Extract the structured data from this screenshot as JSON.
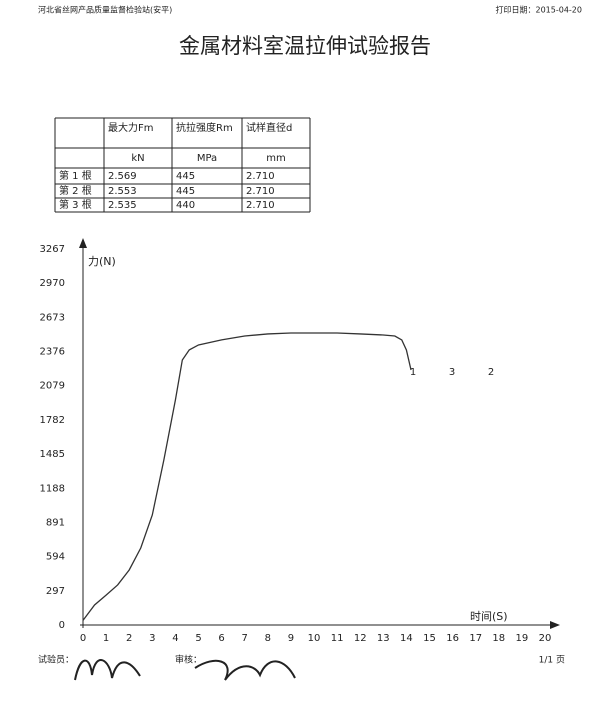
{
  "header": {
    "left": "河北省丝网产品质量监督检验站(安平)",
    "right": "打印日期：2015-04-20"
  },
  "title": "金属材料室温拉伸试验报告",
  "table": {
    "rows": [
      [
        "",
        "最大力Fm",
        "抗拉强度Rm",
        "试样直径d"
      ],
      [
        "",
        "kN",
        "MPa",
        "mm"
      ],
      [
        "第 1 根",
        "2.569",
        "445",
        "2.710"
      ],
      [
        "第 2 根",
        "2.553",
        "445",
        "2.710"
      ],
      [
        "第 3 根",
        "2.535",
        "440",
        "2.710"
      ]
    ]
  },
  "chart_data": {
    "type": "line",
    "y_label": "力(N)",
    "x_label": "时间(S)",
    "x": [
      0,
      0.5,
      1,
      1.5,
      2,
      2.5,
      3,
      3.5,
      4,
      4.3,
      4.6,
      5,
      6,
      7,
      8,
      9,
      10,
      11,
      12,
      13,
      13.5,
      13.8,
      14,
      14.2
    ],
    "series": [
      {
        "color": "#333333",
        "values": [
          40,
          174,
          260,
          348,
          478,
          669,
          956,
          1434,
          1955,
          2303,
          2390,
          2433,
          2477,
          2511,
          2529,
          2537,
          2537,
          2537,
          2529,
          2520,
          2511,
          2477,
          2390,
          2216
        ]
      }
    ],
    "xlim": [
      0,
      20
    ],
    "xticks": [
      0,
      1,
      2,
      3,
      4,
      5,
      6,
      7,
      8,
      9,
      10,
      11,
      12,
      13,
      14,
      15,
      16,
      17,
      18,
      19,
      20
    ],
    "ylim": [
      0,
      3267
    ],
    "yticks": [
      0,
      297,
      594,
      891,
      1188,
      1485,
      1782,
      2079,
      2376,
      2673,
      2970,
      3267
    ],
    "annotations": [
      "1",
      "3",
      "2"
    ]
  },
  "footer": {
    "tester": "试验员：",
    "reviewer": "审核：",
    "page": "1/1 页"
  }
}
